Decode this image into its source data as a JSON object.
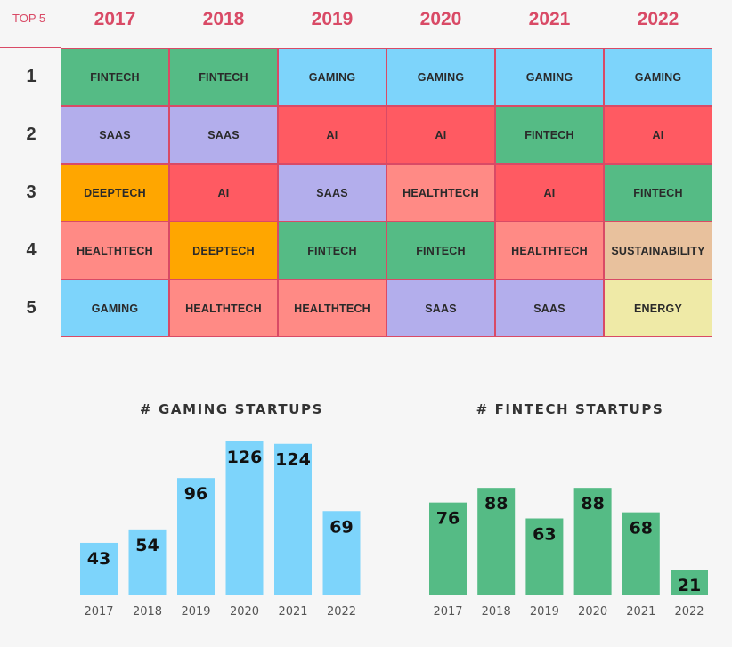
{
  "ranking": {
    "corner_label": "TOP 5",
    "years": [
      "2017",
      "2018",
      "2019",
      "2020",
      "2021",
      "2022"
    ],
    "ranks": [
      "1",
      "2",
      "3",
      "4",
      "5"
    ],
    "cells": [
      [
        "FINTECH",
        "FINTECH",
        "GAMING",
        "GAMING",
        "GAMING",
        "GAMING"
      ],
      [
        "SAAS",
        "SAAS",
        "AI",
        "AI",
        "FINTECH",
        "AI"
      ],
      [
        "DEEPTECH",
        "AI",
        "SAAS",
        "HEALTHTECH",
        "AI",
        "FINTECH"
      ],
      [
        "HEALTHTECH",
        "DEEPTECH",
        "FINTECH",
        "FINTECH",
        "HEALTHTECH",
        "SUSTAINABILITY"
      ],
      [
        "GAMING",
        "HEALTHTECH",
        "HEALTHTECH",
        "SAAS",
        "SAAS",
        "ENERGY"
      ]
    ],
    "category_colors": {
      "FINTECH": "#55bb85",
      "GAMING": "#7dd4fb",
      "SAAS": "#b3aeec",
      "AI": "#ff5a62",
      "DEEPTECH": "#ffa600",
      "HEALTHTECH": "#ff8a85",
      "SUSTAINABILITY": "#e8c19d",
      "ENERGY": "#efeaa7"
    },
    "border_color": "#d94a66"
  },
  "chart_data": [
    {
      "type": "bar",
      "title": "# GAMING STARTUPS",
      "categories": [
        "2017",
        "2018",
        "2019",
        "2020",
        "2021",
        "2022"
      ],
      "values": [
        43,
        54,
        96,
        126,
        124,
        69
      ],
      "color": "#7dd4fb",
      "ylim": [
        0,
        126
      ],
      "grid": false,
      "legend": "none"
    },
    {
      "type": "bar",
      "title": "# FINTECH STARTUPS",
      "categories": [
        "2017",
        "2018",
        "2019",
        "2020",
        "2021",
        "2022"
      ],
      "values": [
        76,
        88,
        63,
        88,
        68,
        21
      ],
      "color": "#55bb85",
      "ylim": [
        0,
        126
      ],
      "grid": false,
      "legend": "none"
    }
  ]
}
